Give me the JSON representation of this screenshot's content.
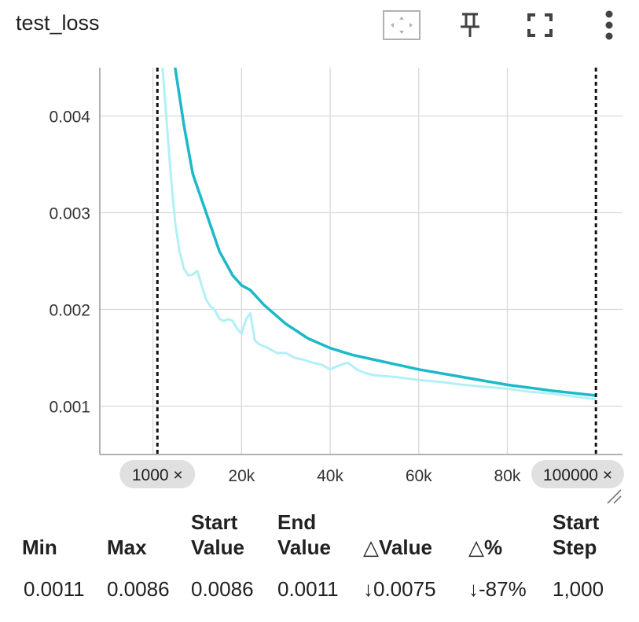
{
  "title": "test_loss",
  "toolbar": {
    "fit_icon": "fit-to-domain-icon",
    "pin_icon": "pin-icon",
    "fullscreen_icon": "fullscreen-icon",
    "more_icon": "more-vert-icon"
  },
  "colors": {
    "smoothed": "#1bb9c9",
    "raw": "#b2f0f6",
    "grid": "#d9d9d9",
    "axis": "#999999"
  },
  "chart_data": {
    "type": "line",
    "title": "test_loss",
    "xlim": [
      -12000,
      106000
    ],
    "ylim": [
      0.0005,
      0.0045
    ],
    "xticks": [
      20000,
      40000,
      60000,
      80000
    ],
    "xtick_labels": [
      "20k",
      "40k",
      "60k",
      "80k"
    ],
    "yticks": [
      0.001,
      0.002,
      0.003,
      0.004
    ],
    "ytick_labels": [
      "0.001",
      "0.002",
      "0.003",
      "0.004"
    ],
    "grid": true,
    "range_markers": [
      {
        "x": 1000,
        "label": "1000 ×"
      },
      {
        "x": 100000,
        "label": "100000 ×"
      }
    ],
    "series": [
      {
        "role": "smoothed",
        "x": [
          3000,
          5000,
          7000,
          9000,
          12000,
          15000,
          18000,
          20000,
          22000,
          25000,
          30000,
          35000,
          40000,
          45000,
          50000,
          60000,
          70000,
          80000,
          90000,
          100000
        ],
        "y": [
          0.0048,
          0.0045,
          0.0039,
          0.0034,
          0.003,
          0.0026,
          0.00235,
          0.00225,
          0.0022,
          0.00205,
          0.00185,
          0.0017,
          0.0016,
          0.00153,
          0.00148,
          0.00138,
          0.0013,
          0.00122,
          0.00116,
          0.00111
        ]
      },
      {
        "role": "raw",
        "x": [
          1000,
          2000,
          3000,
          4000,
          5000,
          6000,
          7000,
          8000,
          9000,
          10000,
          11000,
          12000,
          13000,
          14000,
          15000,
          16000,
          17000,
          18000,
          19000,
          20000,
          21000,
          22000,
          23000,
          24000,
          26000,
          28000,
          30000,
          32000,
          34000,
          36000,
          38000,
          40000,
          42000,
          44000,
          46000,
          48000,
          50000,
          55000,
          60000,
          65000,
          70000,
          75000,
          80000,
          85000,
          90000,
          95000,
          100000
        ],
        "y": [
          0.0052,
          0.0046,
          0.004,
          0.0034,
          0.0029,
          0.0026,
          0.00242,
          0.00235,
          0.00236,
          0.0024,
          0.00225,
          0.0021,
          0.00203,
          0.00199,
          0.0019,
          0.00188,
          0.0019,
          0.00188,
          0.0018,
          0.00175,
          0.0019,
          0.00196,
          0.00168,
          0.00164,
          0.0016,
          0.00155,
          0.00155,
          0.0015,
          0.00148,
          0.00145,
          0.00143,
          0.00138,
          0.00142,
          0.00145,
          0.00138,
          0.00134,
          0.00132,
          0.0013,
          0.00127,
          0.00125,
          0.00122,
          0.0012,
          0.00118,
          0.00115,
          0.00113,
          0.0011,
          0.00107
        ]
      }
    ]
  },
  "stats": {
    "headers": [
      {
        "line1": "",
        "line2": "Min"
      },
      {
        "line1": "",
        "line2": "Max"
      },
      {
        "line1": "Start",
        "line2": "Value"
      },
      {
        "line1": "End",
        "line2": "Value"
      },
      {
        "line1": "",
        "line2": "△Value"
      },
      {
        "line1": "",
        "line2": "△%"
      },
      {
        "line1": "Start",
        "line2": "Step"
      }
    ],
    "values": [
      "0.0011",
      "0.0086",
      "0.0086",
      "0.0011",
      "↓0.0075",
      "↓-87%",
      "1,000"
    ]
  }
}
